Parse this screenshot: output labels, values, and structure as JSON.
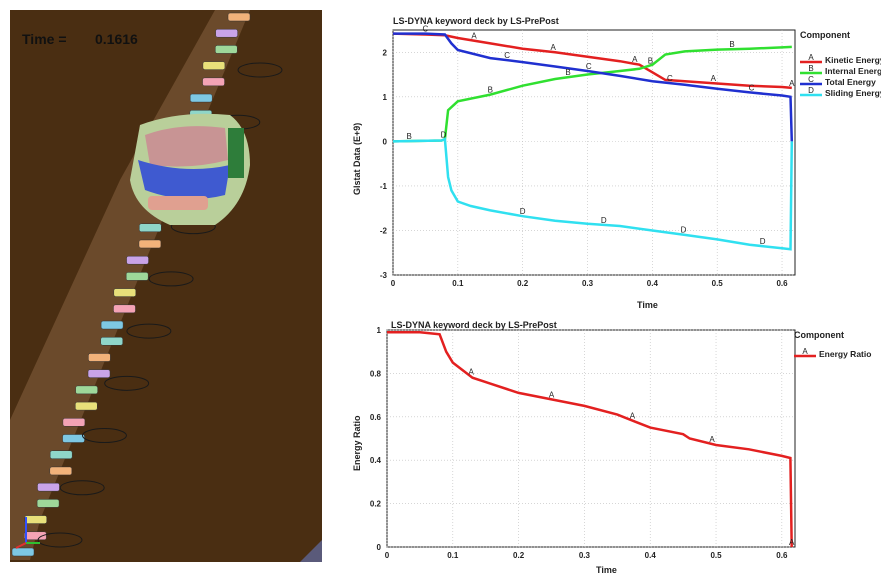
{
  "simulation": {
    "time_label": "Time =",
    "time_value": "0.1616",
    "colors": {
      "ground": "#4a2e12",
      "bridge": "#6a4a2a",
      "car_roof": "#c89494",
      "car_body": "#b9cf9a",
      "car_glass": "#3f5ad0"
    }
  },
  "chart_data": [
    {
      "type": "line",
      "title": "LS-DYNA keyword deck by LS-PrePost",
      "xlabel": "Time",
      "ylabel": "Glstat Data (E+9)",
      "xlim": [
        0,
        0.62
      ],
      "ylim": [
        -3,
        2.5
      ],
      "x_ticks": [
        0,
        0.1,
        0.2,
        0.3,
        0.4,
        0.5,
        0.6
      ],
      "x_tick_labels": [
        "0",
        "0.1",
        "0.2",
        "0.3",
        "0.4",
        "0.5",
        "0.6"
      ],
      "y_ticks": [
        -3,
        -2,
        -1,
        0,
        1,
        2
      ],
      "y_tick_labels": [
        "-3",
        "-2",
        "-1",
        "0",
        "1",
        "2"
      ],
      "grid": true,
      "legend_title": "Component",
      "legend_position": "right",
      "series": [
        {
          "name": "Kinetic Energy",
          "marker": "A",
          "color": "#e32020",
          "x": [
            0,
            0.05,
            0.08,
            0.1,
            0.15,
            0.2,
            0.25,
            0.3,
            0.35,
            0.38,
            0.4,
            0.42,
            0.45,
            0.5,
            0.55,
            0.6,
            0.615
          ],
          "y": [
            2.42,
            2.4,
            2.38,
            2.32,
            2.2,
            2.08,
            2.0,
            1.9,
            1.8,
            1.72,
            1.55,
            1.38,
            1.35,
            1.3,
            1.25,
            1.22,
            1.2
          ],
          "marker_x": [
            0.125,
            0.247,
            0.373,
            0.494,
            0.615
          ]
        },
        {
          "name": "Internal Energy",
          "marker": "B",
          "color": "#30e030",
          "x": [
            0,
            0.075,
            0.08,
            0.085,
            0.1,
            0.15,
            0.2,
            0.25,
            0.3,
            0.35,
            0.38,
            0.4,
            0.42,
            0.45,
            0.5,
            0.55,
            0.6,
            0.615
          ],
          "y": [
            0,
            0.02,
            0.05,
            0.7,
            0.9,
            1.05,
            1.25,
            1.4,
            1.5,
            1.58,
            1.63,
            1.72,
            1.95,
            2.02,
            2.06,
            2.08,
            2.11,
            2.12
          ],
          "marker_x": [
            0.025,
            0.15,
            0.27,
            0.397,
            0.523
          ]
        },
        {
          "name": "Total Energy",
          "marker": "C",
          "color": "#2030d0",
          "x": [
            0,
            0.05,
            0.08,
            0.09,
            0.1,
            0.15,
            0.2,
            0.25,
            0.3,
            0.35,
            0.4,
            0.45,
            0.5,
            0.55,
            0.6,
            0.613,
            0.615
          ],
          "y": [
            2.42,
            2.42,
            2.4,
            2.2,
            2.05,
            1.87,
            1.78,
            1.68,
            1.58,
            1.47,
            1.35,
            1.27,
            1.18,
            1.1,
            1.03,
            1.0,
            0
          ],
          "marker_x": [
            0.05,
            0.176,
            0.302,
            0.427,
            0.553
          ]
        },
        {
          "name": "Sliding Energy",
          "marker": "D",
          "color": "#30e0f0",
          "x": [
            0,
            0.075,
            0.08,
            0.085,
            0.09,
            0.1,
            0.12,
            0.15,
            0.2,
            0.25,
            0.3,
            0.35,
            0.4,
            0.45,
            0.5,
            0.55,
            0.6,
            0.613,
            0.615
          ],
          "y": [
            0,
            0.02,
            0.05,
            -0.8,
            -1.1,
            -1.35,
            -1.45,
            -1.55,
            -1.68,
            -1.78,
            -1.85,
            -1.9,
            -2.0,
            -2.1,
            -2.2,
            -2.32,
            -2.4,
            -2.42,
            0
          ],
          "marker_x": [
            0.078,
            0.2,
            0.325,
            0.448,
            0.57
          ]
        }
      ]
    },
    {
      "type": "line",
      "title": "LS-DYNA keyword deck by LS-PrePost",
      "xlabel": "Time",
      "ylabel": "Energy Ratio",
      "xlim": [
        0,
        0.62
      ],
      "ylim": [
        0,
        1
      ],
      "x_ticks": [
        0,
        0.1,
        0.2,
        0.3,
        0.4,
        0.5,
        0.6
      ],
      "x_tick_labels": [
        "0",
        "0.1",
        "0.2",
        "0.3",
        "0.4",
        "0.5",
        "0.6"
      ],
      "y_ticks": [
        0,
        0.2,
        0.4,
        0.6,
        0.8,
        1
      ],
      "y_tick_labels": [
        "0",
        "0.2",
        "0.4",
        "0.6",
        "0.8",
        "1"
      ],
      "grid": true,
      "legend_title": "Component",
      "legend_position": "right",
      "series": [
        {
          "name": "Energy Ratio",
          "marker": "A",
          "color": "#e32020",
          "x": [
            0,
            0.05,
            0.08,
            0.09,
            0.1,
            0.13,
            0.15,
            0.2,
            0.25,
            0.3,
            0.35,
            0.4,
            0.45,
            0.46,
            0.5,
            0.55,
            0.6,
            0.613,
            0.615
          ],
          "y": [
            0.99,
            0.99,
            0.98,
            0.9,
            0.85,
            0.78,
            0.76,
            0.71,
            0.68,
            0.65,
            0.61,
            0.55,
            0.52,
            0.5,
            0.47,
            0.45,
            0.42,
            0.41,
            0
          ],
          "marker_x": [
            0.128,
            0.25,
            0.373,
            0.494,
            0.615
          ]
        }
      ]
    }
  ]
}
